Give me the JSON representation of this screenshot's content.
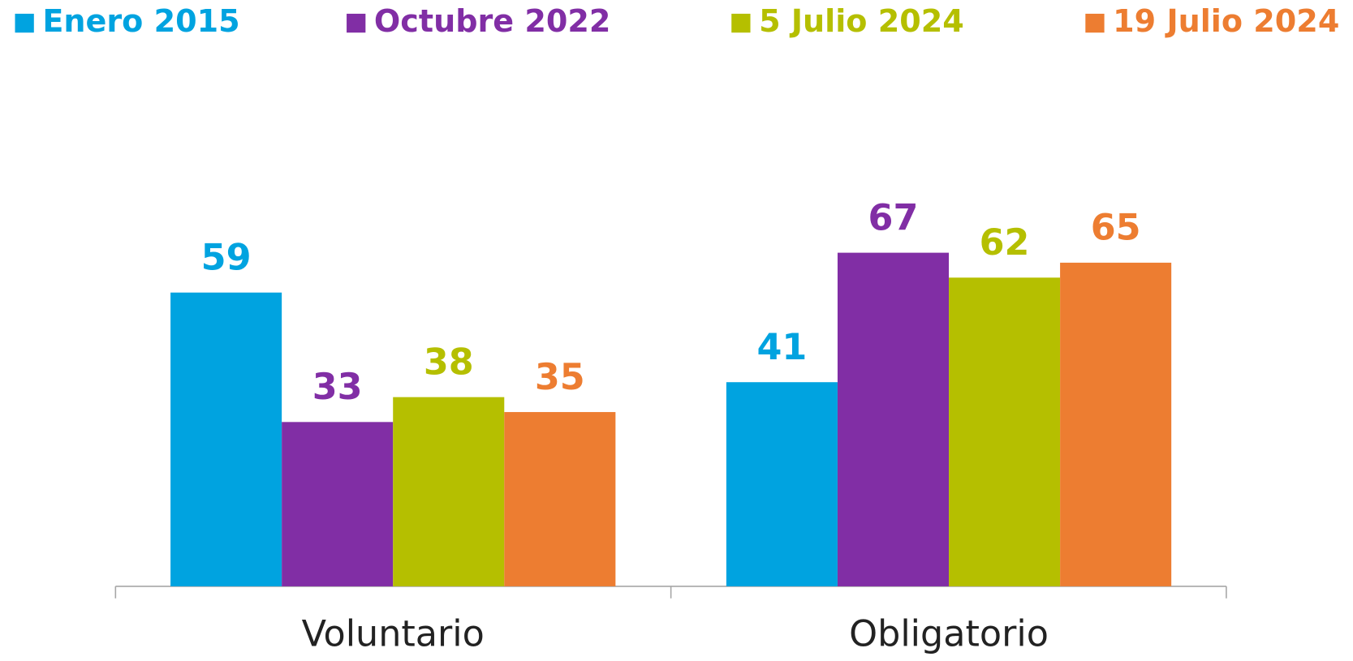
{
  "chart_data": {
    "type": "bar",
    "categories": [
      "Voluntario",
      "Obligatorio"
    ],
    "series": [
      {
        "name": "Enero 2015",
        "color": "#00a3e0",
        "values": [
          59,
          41
        ]
      },
      {
        "name": "Octubre 2022",
        "color": "#812ea5",
        "values": [
          33,
          67
        ]
      },
      {
        "name": "5 Julio 2024",
        "color": "#b5bf00",
        "values": [
          38,
          62
        ]
      },
      {
        "name": "19 Julio 2024",
        "color": "#ed7d31",
        "values": [
          35,
          65
        ]
      }
    ],
    "legend": "top"
  }
}
